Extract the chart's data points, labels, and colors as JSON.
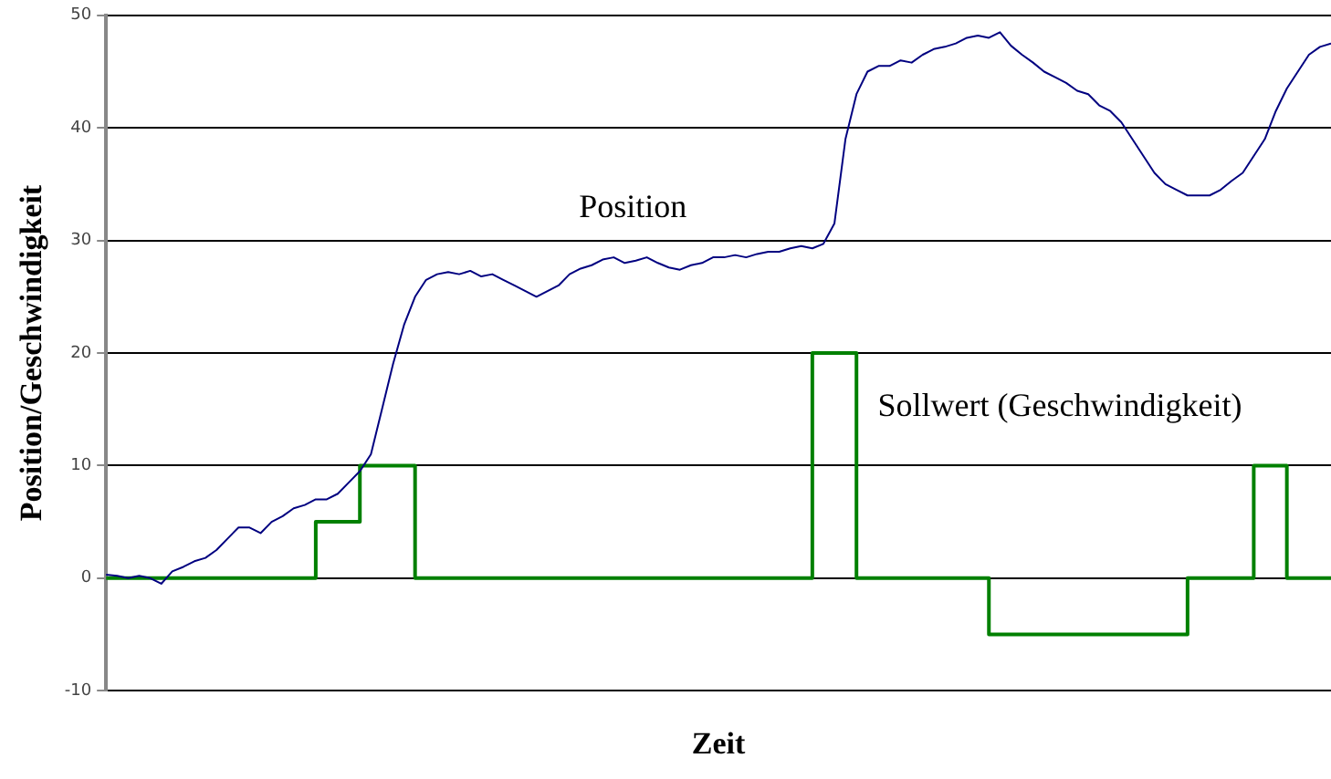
{
  "chart_data": {
    "type": "line",
    "xlabel": "Zeit",
    "ylabel": "Position/Geschwindigkeit",
    "categories": [
      null,
      null,
      null,
      null,
      null,
      null,
      null,
      null,
      null,
      null,
      null,
      null,
      null,
      null,
      null,
      null,
      null,
      null,
      null,
      null,
      null,
      null,
      null,
      null,
      null,
      null,
      null,
      null,
      null,
      null,
      null,
      null,
      null,
      null,
      null,
      null,
      null,
      null,
      null,
      null,
      null,
      null,
      null,
      null,
      null,
      null,
      null,
      null,
      null,
      null,
      null,
      null,
      null,
      null,
      null,
      null,
      null,
      null,
      null,
      null,
      null,
      null,
      null,
      null,
      null,
      null,
      null,
      null,
      null,
      null,
      null,
      null,
      null,
      null,
      null,
      null,
      null,
      null,
      null,
      null,
      null,
      null,
      null,
      null,
      null,
      null,
      null,
      null,
      null,
      null,
      null,
      null,
      null,
      null,
      null,
      null,
      null,
      null,
      null,
      null,
      null,
      null,
      null,
      null,
      null,
      null,
      null,
      null,
      null,
      null,
      null,
      null
    ],
    "series": [
      {
        "name": "Position",
        "color": "#000080",
        "values": [
          0.3,
          0.2,
          0,
          0.2,
          0,
          -0.5,
          0.6,
          1,
          1.5,
          1.8,
          2.5,
          3.5,
          4.5,
          4.5,
          4,
          5,
          5.5,
          6.2,
          6.5,
          7,
          7,
          7.5,
          8.5,
          9.5,
          11,
          15,
          19,
          22.5,
          25,
          26.5,
          27,
          27.2,
          27,
          27.3,
          26.8,
          27,
          26.5,
          26,
          25.5,
          25,
          25.5,
          26,
          27,
          27.5,
          27.8,
          28.3,
          28.5,
          28,
          28.2,
          28.5,
          28,
          27.6,
          27.4,
          27.8,
          28,
          28.5,
          28.5,
          28.7,
          28.5,
          28.8,
          29,
          29,
          29.3,
          29.5,
          29.3,
          29.7,
          31.5,
          39,
          43,
          45,
          45.5,
          45.5,
          46,
          45.8,
          46.5,
          47,
          47.2,
          47.5,
          48,
          48.2,
          48,
          48.5,
          47.3,
          46.5,
          45.8,
          45,
          44.5,
          44,
          43.3,
          43,
          42,
          41.5,
          40.5,
          39,
          37.5,
          36,
          35,
          34.5,
          34,
          34,
          34,
          34.5,
          35.3,
          36,
          37.5,
          39,
          41.5,
          43.5,
          45,
          46.5,
          47.2,
          47.5
        ]
      },
      {
        "name": "Sollwert (Geschwindigkeit)",
        "type": "step",
        "color": "#008000",
        "values": [
          0,
          0,
          0,
          0,
          0,
          0,
          0,
          0,
          0,
          0,
          0,
          0,
          0,
          0,
          0,
          0,
          0,
          0,
          0,
          5,
          5,
          5,
          5,
          10,
          10,
          10,
          10,
          10,
          0,
          0,
          0,
          0,
          0,
          0,
          0,
          0,
          0,
          0,
          0,
          0,
          0,
          0,
          0,
          0,
          0,
          0,
          0,
          0,
          0,
          0,
          0,
          0,
          0,
          0,
          0,
          0,
          0,
          0,
          0,
          0,
          0,
          0,
          0,
          0,
          20,
          20,
          20,
          20,
          0,
          0,
          0,
          0,
          0,
          0,
          0,
          0,
          0,
          0,
          0,
          0,
          -5,
          -5,
          -5,
          -5,
          -5,
          -5,
          -5,
          -5,
          -5,
          -5,
          -5,
          -5,
          -5,
          -5,
          -5,
          -5,
          -5,
          -5,
          0,
          0,
          0,
          0,
          0,
          0,
          10,
          10,
          10,
          0,
          0,
          0,
          0,
          0
        ]
      }
    ],
    "ylim": [
      -10,
      50
    ],
    "yticks": [
      -10,
      0,
      10,
      20,
      30,
      40,
      50
    ],
    "grid": "y",
    "legend": false
  }
}
